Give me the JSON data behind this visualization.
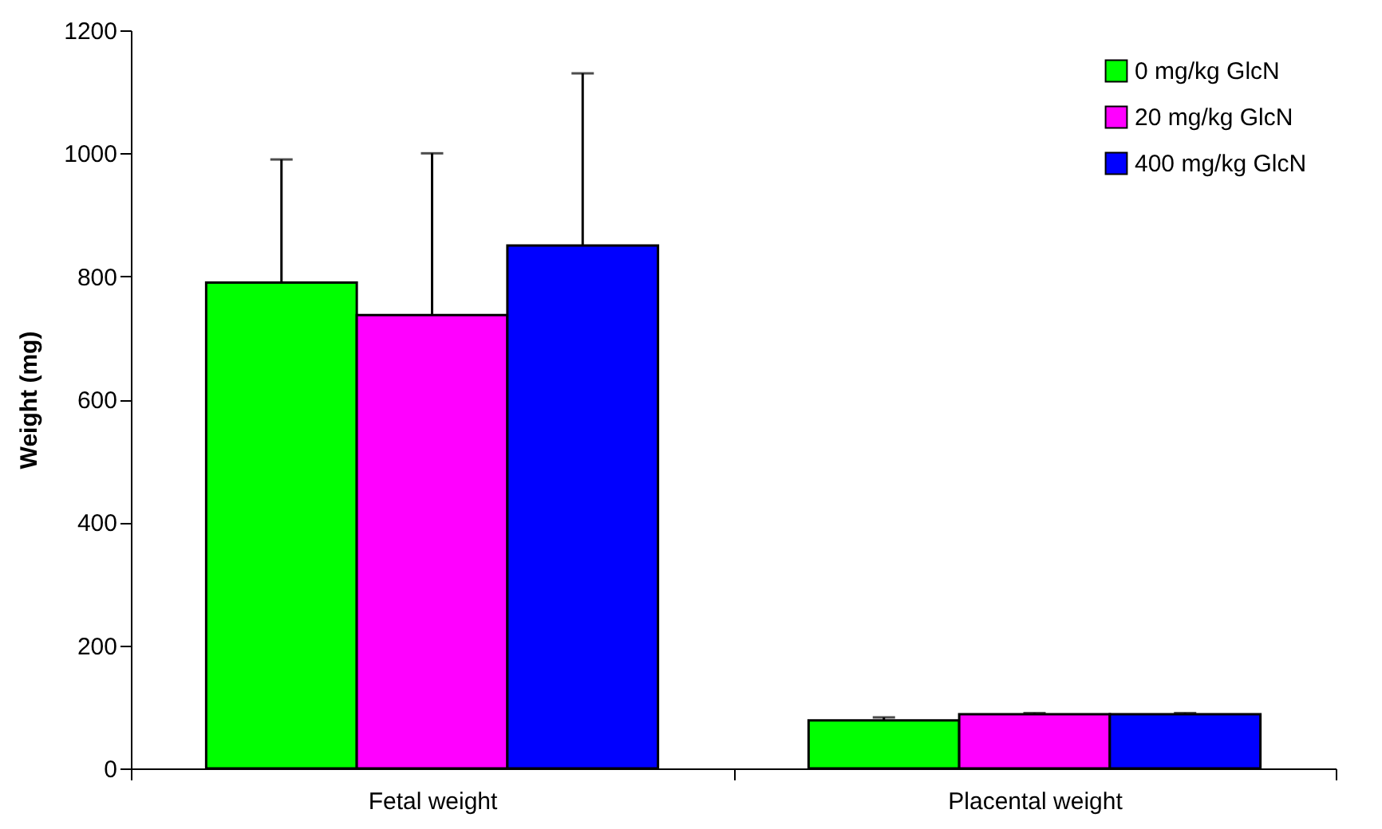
{
  "chart_data": {
    "type": "bar",
    "ylabel": "Weight (mg)",
    "categories": [
      "Fetal weight",
      "Placental weight"
    ],
    "series": [
      {
        "name": "0 mg/kg GlcN",
        "color": "#00ff00",
        "values": [
          790,
          78
        ],
        "errors": [
          [
            790,
            990
          ],
          [
            78,
            83
          ]
        ]
      },
      {
        "name": "20 mg/kg GlcN",
        "color": "#ff00ff",
        "values": [
          737,
          88
        ],
        "errors": [
          [
            737,
            1000
          ],
          [
            88,
            90
          ]
        ]
      },
      {
        "name": "400 mg/kg GlcN",
        "color": "#0000ff",
        "values": [
          850,
          88
        ],
        "errors": [
          [
            850,
            1130
          ],
          [
            88,
            90
          ]
        ]
      }
    ],
    "ylim": [
      0,
      1200
    ],
    "yticks": [
      0,
      200,
      400,
      600,
      800,
      1000,
      1200
    ],
    "grid": false,
    "legend": "top right"
  }
}
